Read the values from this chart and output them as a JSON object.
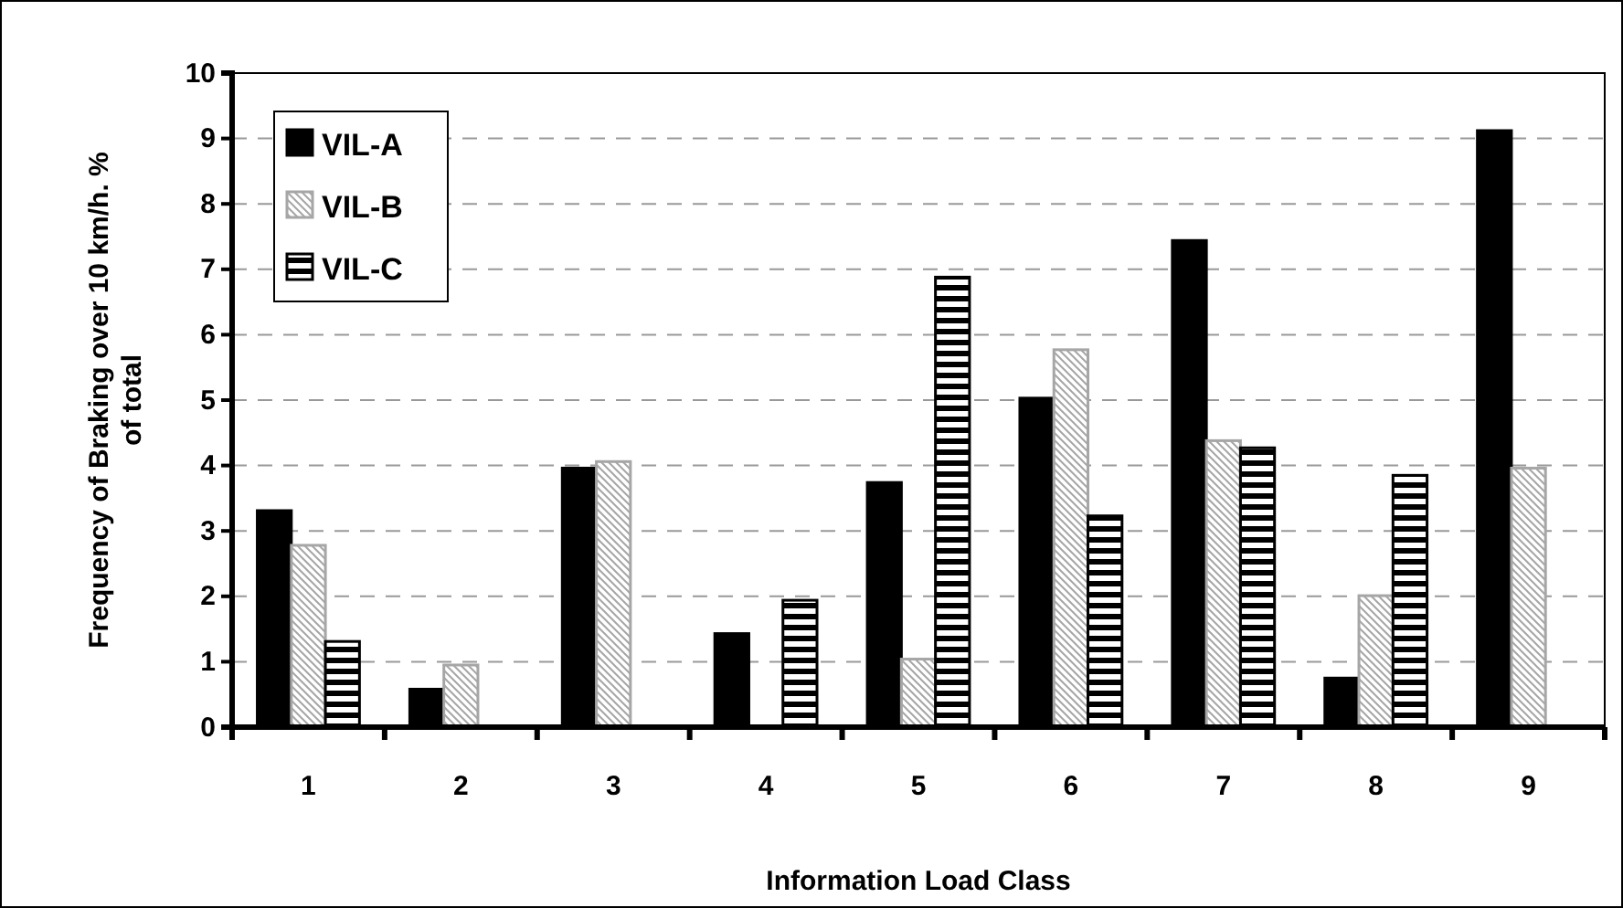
{
  "chart_data": {
    "type": "bar",
    "xlabel": "Information Load Class",
    "ylabel": "Frequency of Braking over 10 km/h. % of total",
    "categories": [
      "1",
      "2",
      "3",
      "4",
      "5",
      "6",
      "7",
      "8",
      "9"
    ],
    "series": [
      {
        "name": "VIL-A",
        "color": "#000000",
        "values": [
          3.31,
          0.58,
          3.96,
          1.43,
          3.74,
          5.03,
          7.44,
          0.75,
          9.12
        ]
      },
      {
        "name": "VIL-B",
        "color": "#a6a6a6",
        "values": [
          2.78,
          0.95,
          4.06,
          null,
          1.04,
          5.77,
          4.38,
          2.01,
          3.96
        ]
      },
      {
        "name": "VIL-C",
        "color": "#000000",
        "values": [
          1.31,
          null,
          null,
          1.94,
          6.88,
          3.23,
          4.27,
          3.85,
          null
        ]
      }
    ],
    "ylim": [
      0,
      10
    ],
    "yticks": [
      0,
      1,
      2,
      3,
      4,
      5,
      6,
      7,
      8,
      9,
      10
    ],
    "grid": "y",
    "legend": "top left"
  }
}
